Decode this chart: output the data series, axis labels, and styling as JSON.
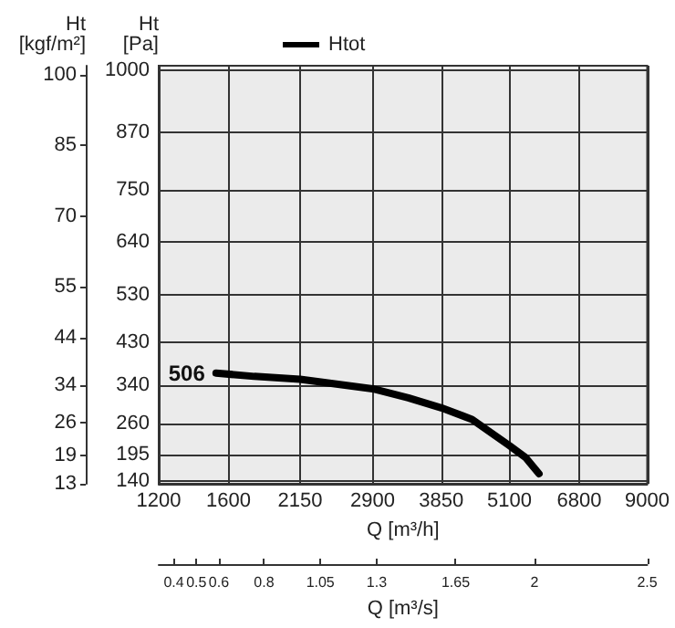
{
  "chart_data": {
    "type": "line",
    "xlabel": "Q [m³/h]",
    "ylabel": "Ht [Pa]",
    "y2label": "Ht [kgf/m²]",
    "x2label": "Q [m³/s]",
    "log": "x",
    "xlim": [
      1200,
      9000
    ],
    "xticks": [
      1200,
      1600,
      2150,
      2900,
      3850,
      5100,
      6800,
      9000
    ],
    "x2lim": [
      0.333,
      2.5
    ],
    "x2ticks": [
      0.4,
      0.5,
      0.6,
      0.8,
      1.05,
      1.3,
      1.65,
      2,
      2.5
    ],
    "ylim": [
      134,
      1010
    ],
    "yticks": [
      140,
      195,
      260,
      340,
      430,
      530,
      640,
      750,
      870,
      1000
    ],
    "y2lim": [
      13,
      102
    ],
    "y2ticks": [
      13,
      19,
      26,
      34,
      44,
      55,
      70,
      85,
      100
    ],
    "grid": true,
    "legend": "top left",
    "line_style": "solid",
    "marker": "none",
    "annotations": [
      {
        "text": "506",
        "x": 1520,
        "y": 366
      }
    ],
    "series": [
      {
        "name": "Htot",
        "color": "#000000",
        "x": [
          1520,
          1780,
          2150,
          2900,
          3360,
          3850,
          4370,
          5100,
          5450,
          5760
        ],
        "values": [
          366,
          359,
          353,
          333,
          314,
          293,
          269,
          214,
          189,
          155
        ]
      }
    ]
  }
}
